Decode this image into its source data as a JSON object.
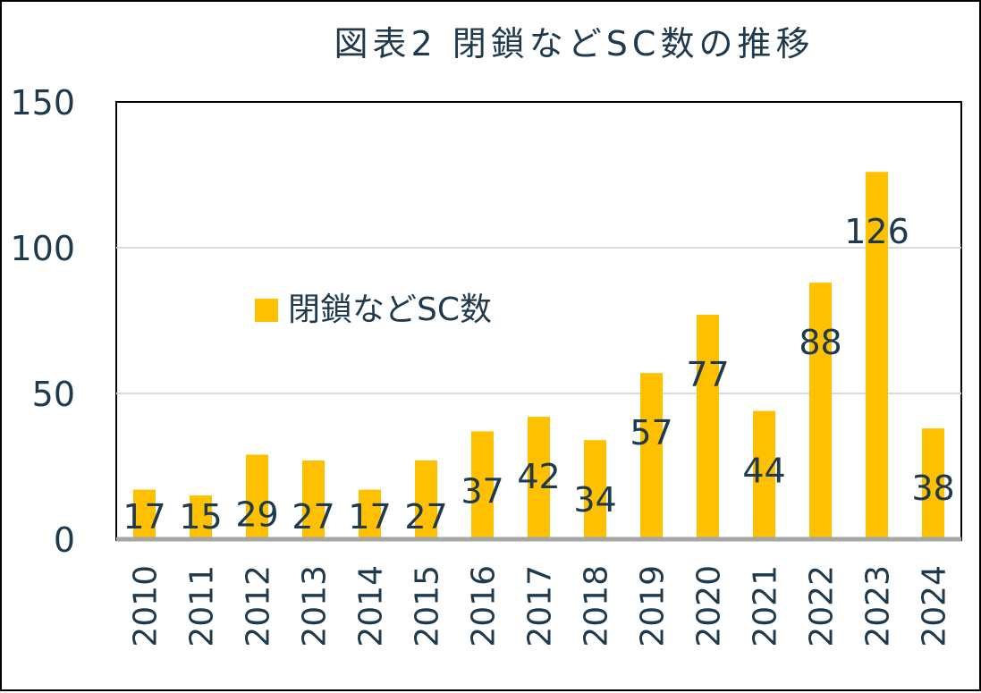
{
  "chart_data": {
    "type": "bar",
    "title": "図表2  閉鎖などSC数の推移",
    "xlabel": "",
    "ylabel": "",
    "categories": [
      "2010",
      "2011",
      "2012",
      "2013",
      "2014",
      "2015",
      "2016",
      "2017",
      "2018",
      "2019",
      "2020",
      "2021",
      "2022",
      "2023",
      "2024"
    ],
    "series": [
      {
        "name": "閉鎖などSC数",
        "values": [
          17,
          15,
          29,
          27,
          17,
          27,
          37,
          42,
          34,
          57,
          77,
          44,
          88,
          126,
          38
        ],
        "color": "#ffc000"
      }
    ],
    "ylim": [
      0,
      150
    ],
    "yticks": [
      0,
      50,
      100,
      150
    ],
    "grid": true,
    "legend_position": "upper-left-inside",
    "data_labels": true,
    "text_color": "#1f3a4d"
  }
}
